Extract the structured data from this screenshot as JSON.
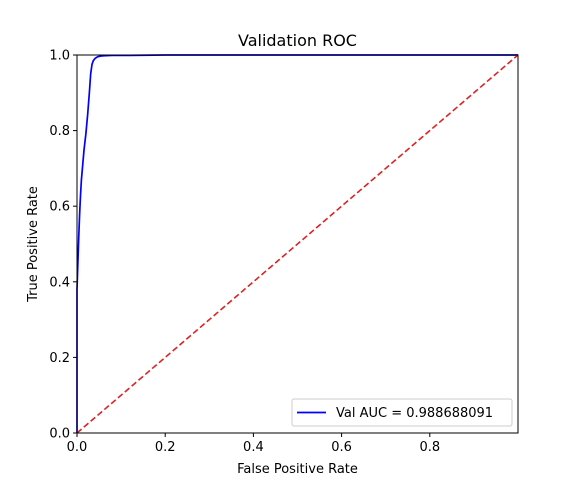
{
  "chart_data": {
    "type": "line",
    "title": "Validation ROC",
    "xlabel": "False Positive Rate",
    "ylabel": "True Positive Rate",
    "xlim": [
      0,
      1
    ],
    "ylim": [
      0,
      1
    ],
    "xticks": [
      0,
      0.2,
      0.4,
      0.6,
      0.8
    ],
    "xtick_labels": [
      "0.0",
      "0.2",
      "0.4",
      "0.6",
      "0.8"
    ],
    "yticks": [
      0,
      0.2,
      0.4,
      0.6,
      0.8,
      1
    ],
    "ytick_labels": [
      "0.0",
      "0.2",
      "0.4",
      "0.6",
      "0.8",
      "1.0"
    ],
    "grid": false,
    "legend_position": "lower-right",
    "series": [
      {
        "name": "Val AUC = 0.988688091",
        "color": "#0000ff",
        "style": "solid",
        "x": [
          0,
          0.0,
          0.002,
          0.004,
          0.006,
          0.008,
          0.01,
          0.013,
          0.016,
          0.02,
          0.024,
          0.028,
          0.031,
          0.034,
          0.037,
          0.041,
          0.046,
          0.052,
          0.06,
          0.08,
          0.12,
          0.2,
          0.4,
          0.7,
          1.0
        ],
        "y": [
          0,
          0.38,
          0.45,
          0.52,
          0.58,
          0.63,
          0.67,
          0.71,
          0.75,
          0.79,
          0.84,
          0.9,
          0.95,
          0.975,
          0.985,
          0.991,
          0.995,
          0.997,
          0.998,
          0.999,
          0.999,
          1.0,
          1.0,
          1.0,
          1.0
        ]
      },
      {
        "name": "",
        "color": "#dd2222",
        "style": "dashed",
        "x": [
          0,
          1
        ],
        "y": [
          0,
          1
        ]
      }
    ]
  }
}
